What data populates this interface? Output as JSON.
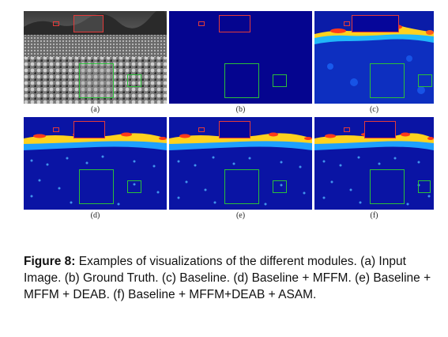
{
  "panels": [
    {
      "label": "(a)"
    },
    {
      "label": "(b)"
    },
    {
      "label": "(c)"
    },
    {
      "label": "(d)"
    },
    {
      "label": "(e)"
    },
    {
      "label": "(f)"
    }
  ],
  "caption": {
    "prefix": "Figure 8:",
    "text": " Examples of visualizations of the different modules. (a) Input Image. (b) Ground Truth. (c) Baseline. (d) Baseline + MFFM. (e) Baseline + MFFM + DEAB. (f) Baseline + MFFM+DEAB + ASAM."
  }
}
